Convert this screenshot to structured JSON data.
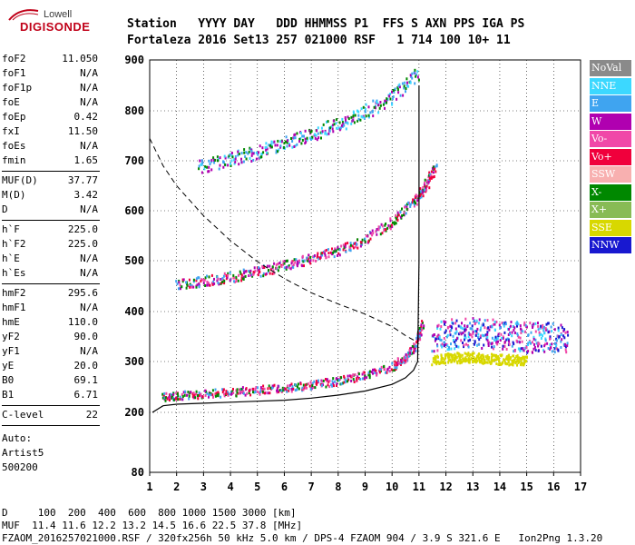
{
  "logo": {
    "line1": "Lowell",
    "line2": "DIGISONDE"
  },
  "header": {
    "line1": "Station   YYYY DAY   DDD HHMMSS P1  FFS S AXN PPS IGA PS",
    "line2": "Fortaleza 2016 Set13 257 021000 RSF   1 714 100 10+ 11"
  },
  "params_group1": [
    {
      "k": "foF2",
      "v": "11.050"
    },
    {
      "k": "foF1",
      "v": "N/A"
    },
    {
      "k": "foF1p",
      "v": "N/A"
    },
    {
      "k": "foE",
      "v": "N/A"
    },
    {
      "k": "foEp",
      "v": "0.42"
    },
    {
      "k": "fxI",
      "v": "11.50"
    },
    {
      "k": "foEs",
      "v": "N/A"
    },
    {
      "k": "fmin",
      "v": "1.65"
    }
  ],
  "params_group2": [
    {
      "k": "MUF(D)",
      "v": "37.77"
    },
    {
      "k": "M(D)",
      "v": "3.42"
    },
    {
      "k": "D",
      "v": "N/A"
    }
  ],
  "params_group3": [
    {
      "k": "h`F",
      "v": "225.0"
    },
    {
      "k": "h`F2",
      "v": "225.0"
    },
    {
      "k": "h`E",
      "v": "N/A"
    },
    {
      "k": "h`Es",
      "v": "N/A"
    }
  ],
  "params_group4": [
    {
      "k": "hmF2",
      "v": "295.6"
    },
    {
      "k": "hmF1",
      "v": "N/A"
    },
    {
      "k": "hmE",
      "v": "110.0"
    },
    {
      "k": "yF2",
      "v": "90.0"
    },
    {
      "k": "yF1",
      "v": "N/A"
    },
    {
      "k": "yE",
      "v": "20.0"
    },
    {
      "k": "B0",
      "v": "69.1"
    },
    {
      "k": "B1",
      "v": "6.71"
    }
  ],
  "clevel": {
    "k": "C-level",
    "v": "22"
  },
  "auto": {
    "line1": "Auto:",
    "line2": "Artist5",
    "line3": "500200"
  },
  "legend": [
    {
      "label": "NoVal",
      "color": "#8a8a8a"
    },
    {
      "label": "NNE",
      "color": "#3cd8ff"
    },
    {
      "label": "E",
      "color": "#3fa4f0"
    },
    {
      "label": "W",
      "color": "#b000b0"
    },
    {
      "label": "Vo-",
      "color": "#f048a8"
    },
    {
      "label": "Vo+",
      "color": "#f0003c"
    },
    {
      "label": "SSW",
      "color": "#f8b0b0"
    },
    {
      "label": "X-",
      "color": "#008800"
    },
    {
      "label": "X+",
      "color": "#88bb55"
    },
    {
      "label": "SSE",
      "color": "#d8d800"
    },
    {
      "label": "NNW",
      "color": "#1818d0"
    }
  ],
  "footer": {
    "line1": "D     100  200  400  600  800 1000 1500 3000 [km]",
    "line2": "MUF  11.4 11.6 12.2 13.2 14.5 16.6 22.5 37.8 [MHz]",
    "line3": "FZAOM_2016257021000.RSF / 320fx256h 50 kHz 5.0 km / DPS-4 FZAOM 904 / 3.9 S 321.6 E   Ion2Png 1.3.20"
  },
  "chart_data": {
    "type": "scatter",
    "xlim": [
      1,
      17
    ],
    "ylim": [
      80,
      900
    ],
    "x_ticks": [
      1,
      2,
      3,
      4,
      5,
      6,
      7,
      8,
      9,
      10,
      11,
      12,
      13,
      14,
      15,
      16,
      17
    ],
    "y_ticks": [
      80,
      200,
      300,
      400,
      500,
      600,
      700,
      800,
      900
    ],
    "grid": true,
    "profile_line": {
      "x": [
        1.1,
        1.5,
        2,
        3,
        4,
        5,
        6,
        7,
        8,
        9,
        10,
        10.5,
        10.8,
        10.95,
        11.0,
        11.0
      ],
      "y": [
        200,
        213,
        216,
        218,
        220,
        222,
        224,
        228,
        234,
        242,
        255,
        268,
        283,
        300,
        500,
        850
      ]
    },
    "dashed_line": {
      "x": [
        1.0,
        1.5,
        2,
        3,
        4,
        5,
        6,
        7,
        8,
        9,
        10,
        10.5,
        10.9
      ],
      "y": [
        745,
        690,
        650,
        590,
        540,
        498,
        465,
        437,
        415,
        395,
        370,
        352,
        340
      ]
    },
    "traces": [
      {
        "name": "F-trace O",
        "x": [
          1.5,
          2,
          3,
          4,
          5,
          6,
          7,
          8,
          9,
          10,
          10.5,
          10.9,
          11.1
        ],
        "y": [
          232,
          235,
          238,
          242,
          246,
          250,
          256,
          264,
          275,
          292,
          310,
          340,
          380
        ],
        "spread": 8,
        "colors": [
          "#f0003c",
          "#f048a8",
          "#008800",
          "#b000b0",
          "#3fa4f0"
        ]
      },
      {
        "name": "F-trace 2nd",
        "x": [
          2,
          3,
          4,
          5,
          6,
          7,
          8,
          9,
          10,
          10.8,
          11.2,
          11.6
        ],
        "y": [
          455,
          462,
          470,
          480,
          492,
          506,
          522,
          545,
          580,
          620,
          650,
          690
        ],
        "spread": 10,
        "colors": [
          "#f0003c",
          "#f048a8",
          "#b000b0",
          "#008800",
          "#3fa4f0"
        ]
      },
      {
        "name": "F-trace 3rd",
        "x": [
          2.8,
          4,
          5,
          6,
          7,
          8,
          9,
          10,
          11
        ],
        "y": [
          690,
          705,
          720,
          738,
          755,
          775,
          800,
          830,
          875
        ],
        "spread": 14,
        "colors": [
          "#3fa4f0",
          "#3cd8ff",
          "#008800",
          "#b000b0"
        ]
      },
      {
        "name": "scatter high",
        "x": [
          11.5,
          12,
          12.5,
          13,
          13.5,
          14,
          14.5,
          15,
          15.5,
          16,
          16.5
        ],
        "y": [
          350,
          355,
          360,
          360,
          358,
          355,
          352,
          350,
          350,
          350,
          350
        ],
        "spread": 30,
        "colors": [
          "#3fa4f0",
          "#b000b0",
          "#1818d0",
          "#3cd8ff",
          "#f048a8"
        ]
      },
      {
        "name": "scatter low",
        "x": [
          11.5,
          12,
          12.5,
          13,
          13.5,
          14,
          14.5,
          15
        ],
        "y": [
          305,
          308,
          310,
          310,
          308,
          306,
          305,
          305
        ],
        "spread": 10,
        "colors": [
          "#d8d800"
        ]
      }
    ]
  }
}
